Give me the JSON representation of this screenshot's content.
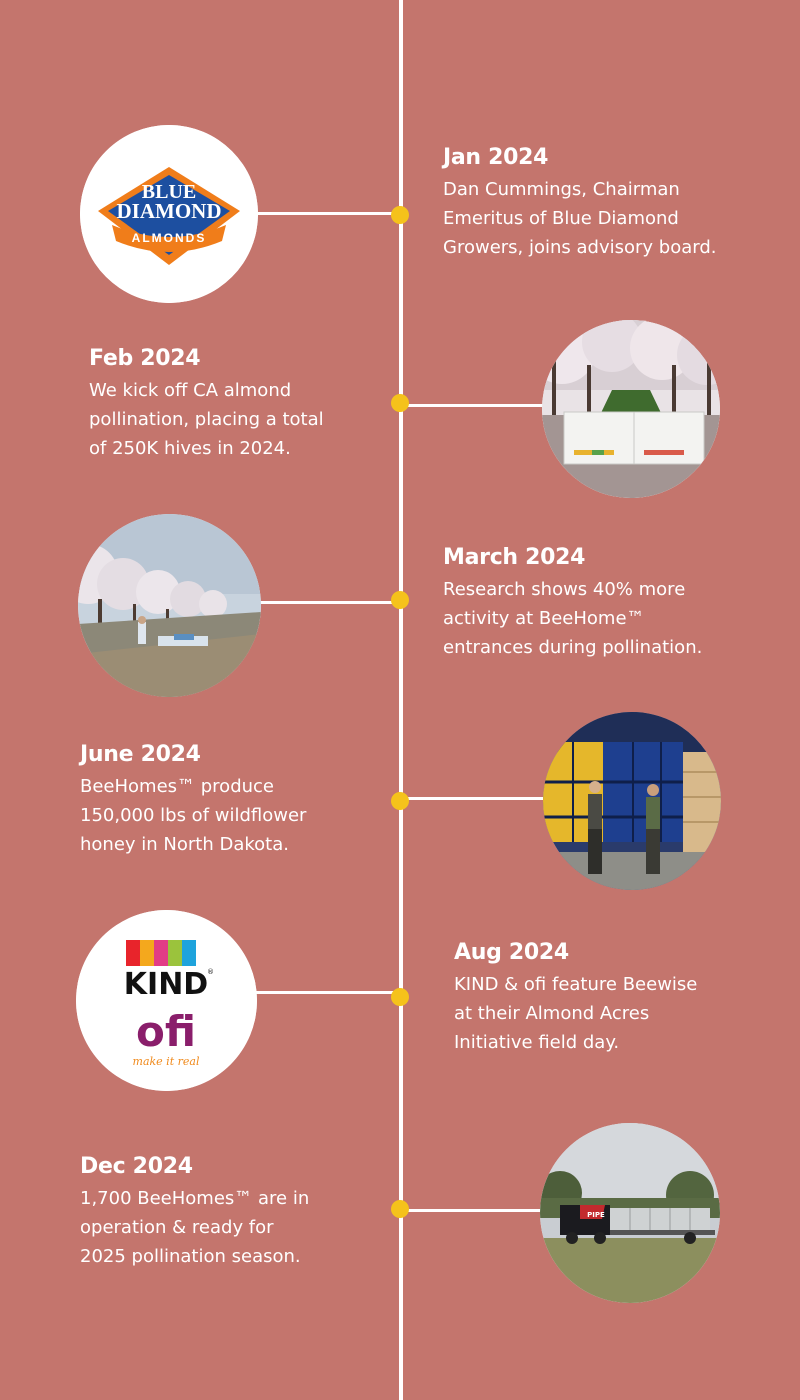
{
  "timeline": {
    "events": [
      {
        "date": "Jan 2024",
        "lines": [
          "Dan Cummings, Chairman",
          "Emeritus of Blue Diamond",
          "Growers, joins advisory board."
        ],
        "image": "blue-diamond-almonds-logo"
      },
      {
        "date": "Feb 2024",
        "lines": [
          "We kick off CA almond",
          "pollination, placing a total",
          "of 250K hives in 2024."
        ],
        "image": "beehome-in-almond-orchard-photo"
      },
      {
        "date": "March 2024",
        "lines": [
          "Research shows 40% more",
          "activity at BeeHome™",
          "entrances during pollination."
        ],
        "image": "blooming-orchard-with-hives-photo"
      },
      {
        "date": "June 2024",
        "lines": [
          "BeeHomes™ produce",
          "150,000 lbs of wildflower",
          "honey in North Dakota."
        ],
        "image": "honey-barrels-warehouse-photo"
      },
      {
        "date": "Aug 2024",
        "lines": [
          "KIND & ofi feature Beewise",
          "at their Almond Acres",
          "Initiative field day."
        ],
        "image": "kind-ofi-logos"
      },
      {
        "date": "Dec 2024",
        "lines": [
          "1,700 BeeHomes™ are in",
          "operation & ready for",
          "2025 pollination season."
        ],
        "image": "truck-with-beehomes-photo"
      }
    ]
  },
  "logos": {
    "blue_diamond": {
      "line1": "BLUE",
      "line2": "DIAMOND",
      "line3": "ALMONDS"
    },
    "kind": {
      "text": "KIND",
      "tm": "®"
    },
    "ofi": {
      "text": "ofi",
      "tagline": "make it real"
    },
    "truck_decal": "PIPE"
  },
  "colors": {
    "background": "#c4756d",
    "timeline_line": "#ffffff",
    "timeline_dot": "#f5c21b",
    "text": "#ffffff"
  }
}
